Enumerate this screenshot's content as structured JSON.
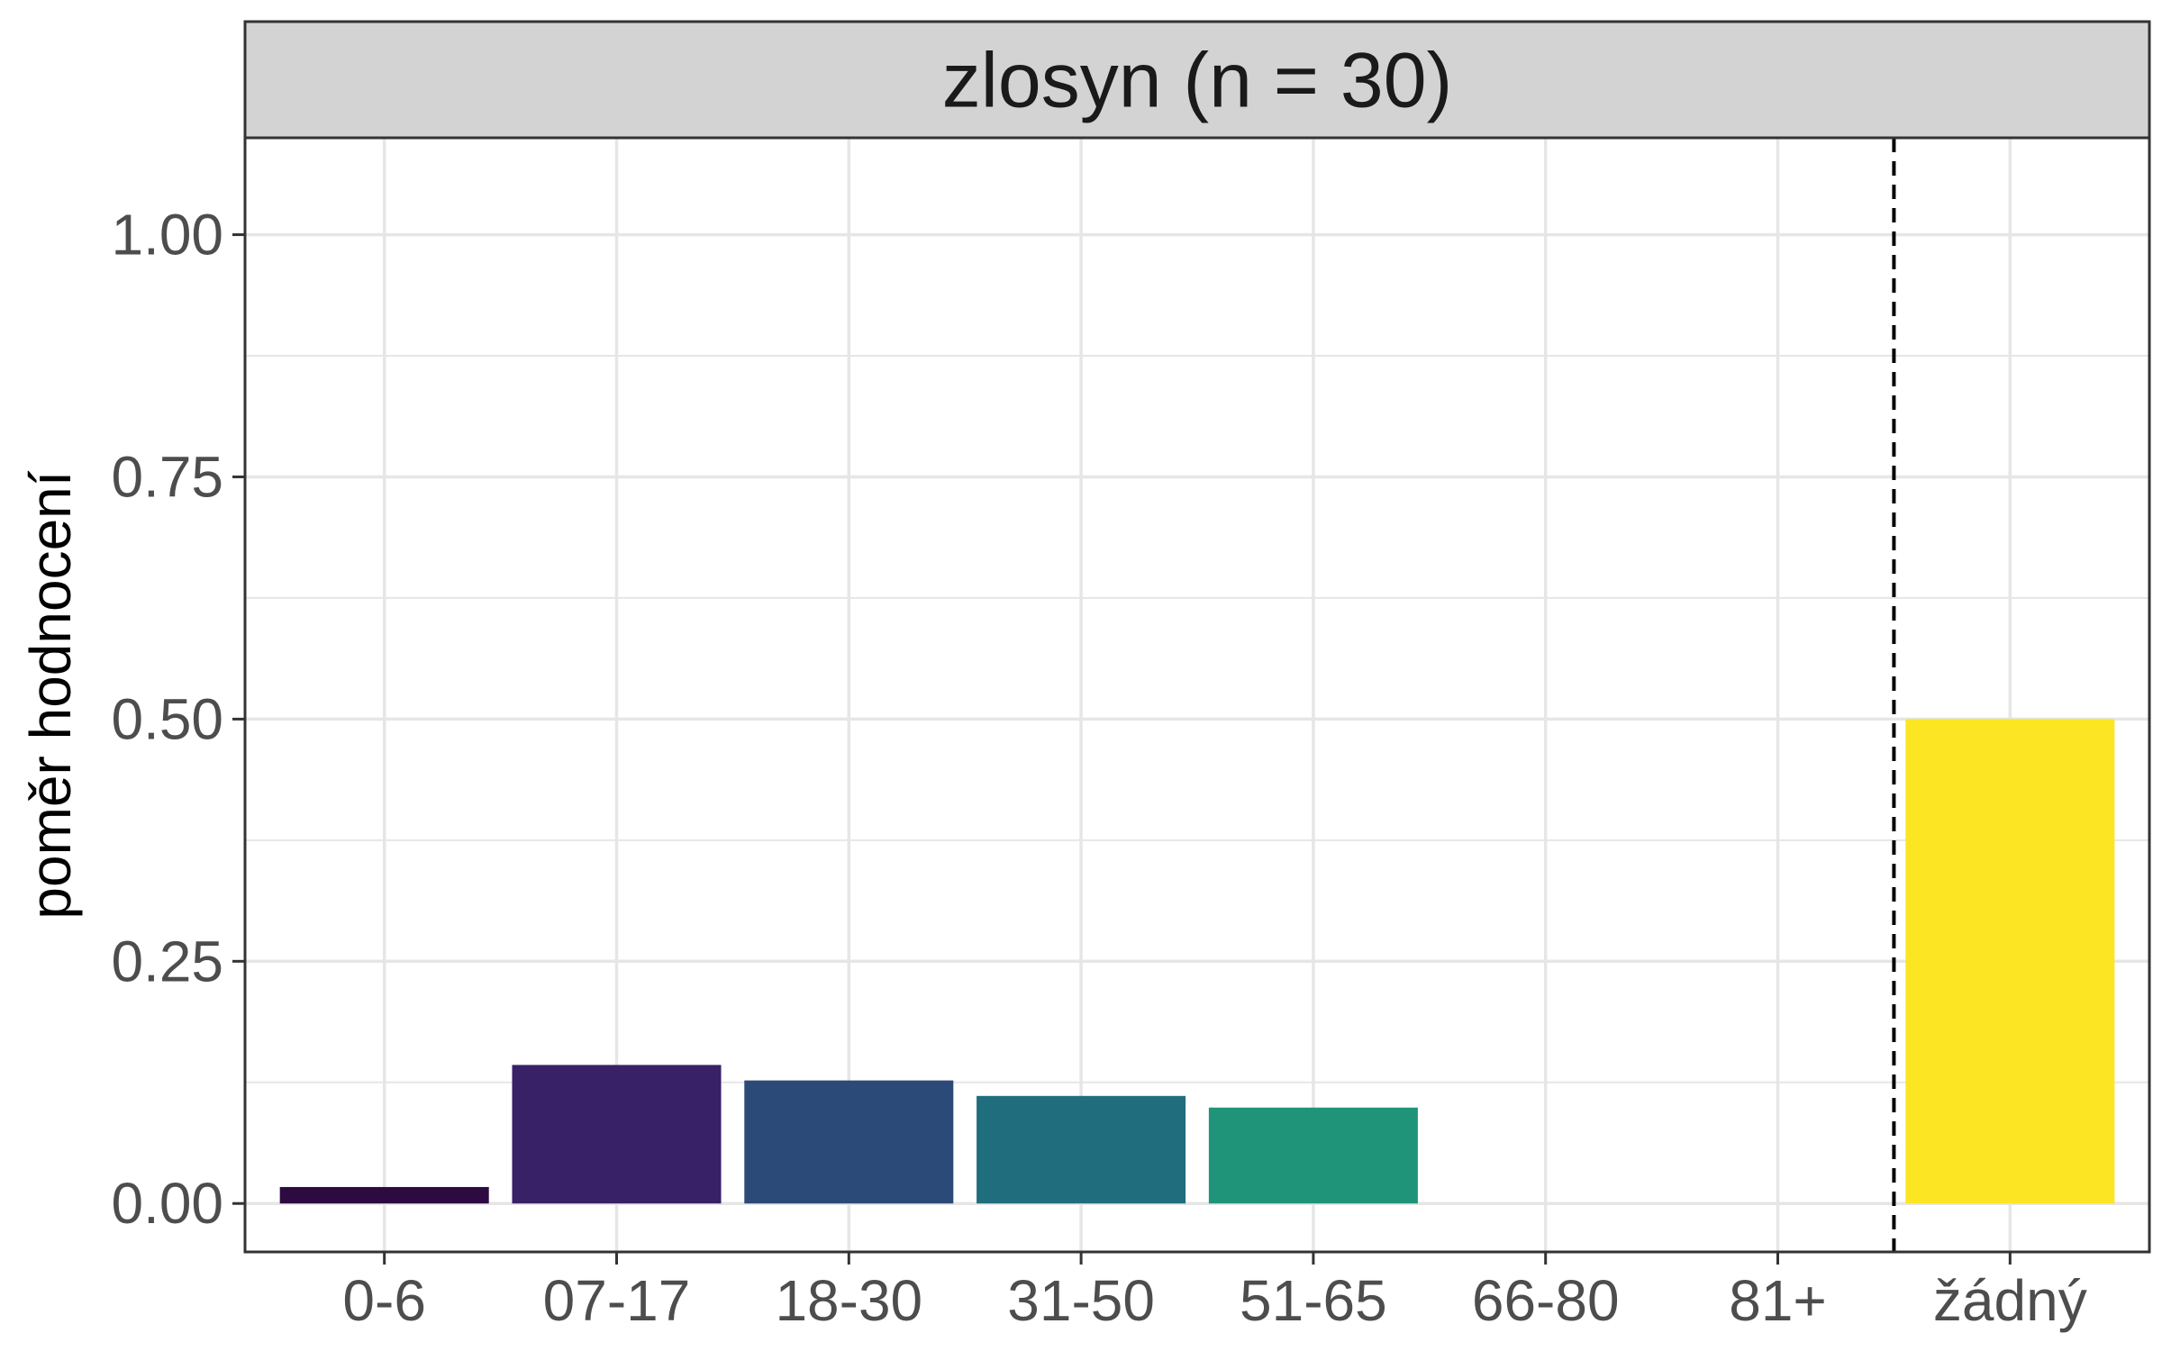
{
  "chart_data": {
    "type": "bar",
    "title": "zlosyn (n = 30)",
    "xlabel": "",
    "ylabel": "poměr hodnocení",
    "categories": [
      "0-6",
      "07-17",
      "18-30",
      "31-50",
      "51-65",
      "66-80",
      "81+",
      "žádný"
    ],
    "values": [
      0.017,
      0.143,
      0.127,
      0.111,
      0.099,
      0,
      0,
      0.5
    ],
    "colors": [
      "#2d0a3f",
      "#382167",
      "#2b4a78",
      "#206e7d",
      "#209478",
      "#209478",
      "#209478",
      "#fce522"
    ],
    "ylim": [
      -0.05,
      1.1
    ],
    "yticks": [
      0,
      0.25,
      0.5,
      0.75,
      1.0
    ],
    "ytick_labels": [
      "0.00",
      "0.25",
      "0.50",
      "0.75",
      "1.00"
    ],
    "reference_line": {
      "between": [
        "81+",
        "žádný"
      ],
      "style": "dashed"
    },
    "grid": true,
    "legend": "none"
  },
  "style": {
    "strip_fill": "#d3d3d3",
    "grid_color": "#e6e6e6",
    "border_color": "#333333"
  }
}
